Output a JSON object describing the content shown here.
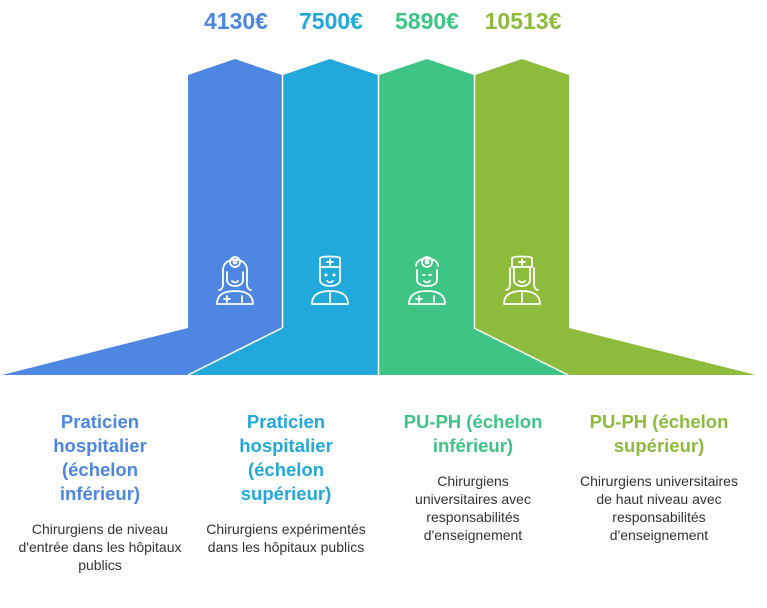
{
  "colors": {
    "blue": "#4D87E1",
    "cyan": "#21A9DC",
    "green": "#3EC585",
    "lime": "#8DBB3C"
  },
  "items": [
    {
      "value": "4130€",
      "title": "Praticien hospitalier (échelon inférieur)",
      "description": "Chirurgiens de niveau d'entrée dans les hôpitaux publics",
      "icon": "female-doctor-icon",
      "color": "#4D87E1"
    },
    {
      "value": "7500€",
      "title": "Praticien hospitalier (échelon supérieur)",
      "description": "Chirurgiens expérimentés dans les hôpitaux publics",
      "icon": "male-doctor-icon",
      "color": "#21A9DC"
    },
    {
      "value": "5890€",
      "title": "PU-PH (échelon inférieur)",
      "description": "Chirurgiens universitaires avec responsabilités d'enseignement",
      "icon": "doctor-head-mirror-icon",
      "color": "#3EC585"
    },
    {
      "value": "10513€",
      "title": "PU-PH (échelon supérieur)",
      "description": "Chirurgiens universitaires de haut niveau avec responsabilités d'enseignement",
      "icon": "female-doctor-cap-icon",
      "color": "#8DBB3C"
    }
  ]
}
